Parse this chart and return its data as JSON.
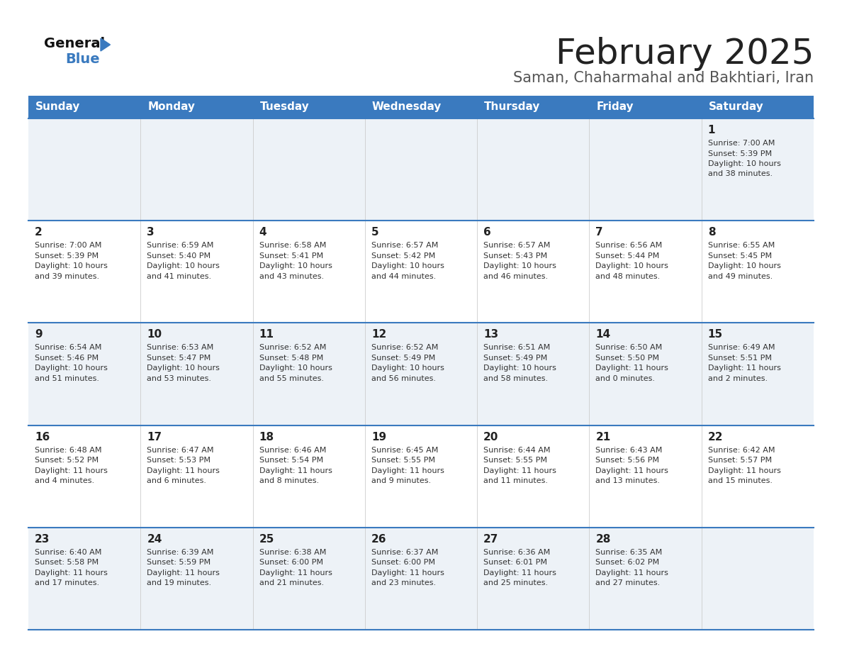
{
  "title": "February 2025",
  "subtitle": "Saman, Chaharmahal and Bakhtiari, Iran",
  "header_bg": "#3a7abf",
  "header_text": "#ffffff",
  "row_bg_light": "#edf2f7",
  "row_bg_white": "#ffffff",
  "border_color": "#3a7abf",
  "text_color": "#333333",
  "day_num_color": "#222222",
  "days_of_week": [
    "Sunday",
    "Monday",
    "Tuesday",
    "Wednesday",
    "Thursday",
    "Friday",
    "Saturday"
  ],
  "calendar": [
    [
      null,
      null,
      null,
      null,
      null,
      null,
      {
        "day": "1",
        "sunrise": "7:00 AM",
        "sunset": "5:39 PM",
        "hours": 10,
        "minutes": 38
      }
    ],
    [
      {
        "day": "2",
        "sunrise": "7:00 AM",
        "sunset": "5:39 PM",
        "hours": 10,
        "minutes": 39
      },
      {
        "day": "3",
        "sunrise": "6:59 AM",
        "sunset": "5:40 PM",
        "hours": 10,
        "minutes": 41
      },
      {
        "day": "4",
        "sunrise": "6:58 AM",
        "sunset": "5:41 PM",
        "hours": 10,
        "minutes": 43
      },
      {
        "day": "5",
        "sunrise": "6:57 AM",
        "sunset": "5:42 PM",
        "hours": 10,
        "minutes": 44
      },
      {
        "day": "6",
        "sunrise": "6:57 AM",
        "sunset": "5:43 PM",
        "hours": 10,
        "minutes": 46
      },
      {
        "day": "7",
        "sunrise": "6:56 AM",
        "sunset": "5:44 PM",
        "hours": 10,
        "minutes": 48
      },
      {
        "day": "8",
        "sunrise": "6:55 AM",
        "sunset": "5:45 PM",
        "hours": 10,
        "minutes": 49
      }
    ],
    [
      {
        "day": "9",
        "sunrise": "6:54 AM",
        "sunset": "5:46 PM",
        "hours": 10,
        "minutes": 51
      },
      {
        "day": "10",
        "sunrise": "6:53 AM",
        "sunset": "5:47 PM",
        "hours": 10,
        "minutes": 53
      },
      {
        "day": "11",
        "sunrise": "6:52 AM",
        "sunset": "5:48 PM",
        "hours": 10,
        "minutes": 55
      },
      {
        "day": "12",
        "sunrise": "6:52 AM",
        "sunset": "5:49 PM",
        "hours": 10,
        "minutes": 56
      },
      {
        "day": "13",
        "sunrise": "6:51 AM",
        "sunset": "5:49 PM",
        "hours": 10,
        "minutes": 58
      },
      {
        "day": "14",
        "sunrise": "6:50 AM",
        "sunset": "5:50 PM",
        "hours": 11,
        "minutes": 0
      },
      {
        "day": "15",
        "sunrise": "6:49 AM",
        "sunset": "5:51 PM",
        "hours": 11,
        "minutes": 2
      }
    ],
    [
      {
        "day": "16",
        "sunrise": "6:48 AM",
        "sunset": "5:52 PM",
        "hours": 11,
        "minutes": 4
      },
      {
        "day": "17",
        "sunrise": "6:47 AM",
        "sunset": "5:53 PM",
        "hours": 11,
        "minutes": 6
      },
      {
        "day": "18",
        "sunrise": "6:46 AM",
        "sunset": "5:54 PM",
        "hours": 11,
        "minutes": 8
      },
      {
        "day": "19",
        "sunrise": "6:45 AM",
        "sunset": "5:55 PM",
        "hours": 11,
        "minutes": 9
      },
      {
        "day": "20",
        "sunrise": "6:44 AM",
        "sunset": "5:55 PM",
        "hours": 11,
        "minutes": 11
      },
      {
        "day": "21",
        "sunrise": "6:43 AM",
        "sunset": "5:56 PM",
        "hours": 11,
        "minutes": 13
      },
      {
        "day": "22",
        "sunrise": "6:42 AM",
        "sunset": "5:57 PM",
        "hours": 11,
        "minutes": 15
      }
    ],
    [
      {
        "day": "23",
        "sunrise": "6:40 AM",
        "sunset": "5:58 PM",
        "hours": 11,
        "minutes": 17
      },
      {
        "day": "24",
        "sunrise": "6:39 AM",
        "sunset": "5:59 PM",
        "hours": 11,
        "minutes": 19
      },
      {
        "day": "25",
        "sunrise": "6:38 AM",
        "sunset": "6:00 PM",
        "hours": 11,
        "minutes": 21
      },
      {
        "day": "26",
        "sunrise": "6:37 AM",
        "sunset": "6:00 PM",
        "hours": 11,
        "minutes": 23
      },
      {
        "day": "27",
        "sunrise": "6:36 AM",
        "sunset": "6:01 PM",
        "hours": 11,
        "minutes": 25
      },
      {
        "day": "28",
        "sunrise": "6:35 AM",
        "sunset": "6:02 PM",
        "hours": 11,
        "minutes": 27
      },
      null
    ]
  ],
  "logo_general_color": "#111111",
  "logo_blue_color": "#3a7abf",
  "logo_triangle_color": "#3a7abf",
  "title_color": "#222222",
  "subtitle_color": "#555555"
}
